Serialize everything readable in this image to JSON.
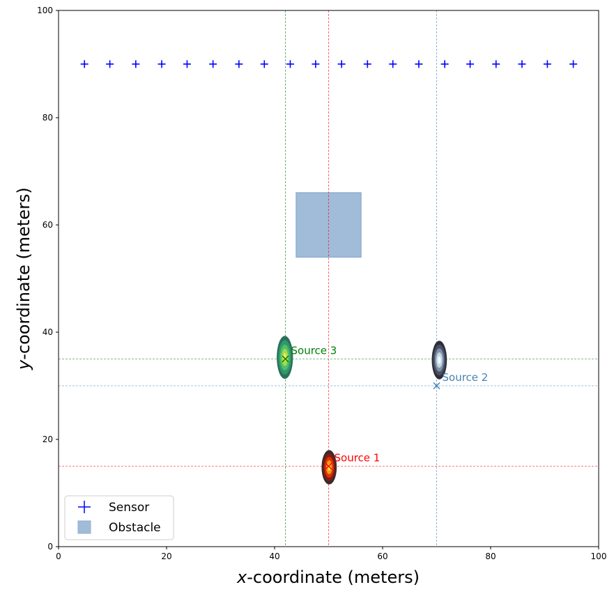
{
  "chart_data": {
    "type": "scatter",
    "title": "",
    "xlabel_var": "x",
    "xlabel_rest": "-coordinate (meters)",
    "ylabel_var": "y",
    "ylabel_rest": "-coordinate (meters)",
    "xlim": [
      0,
      100
    ],
    "ylim": [
      0,
      100
    ],
    "xticks": [
      0,
      20,
      40,
      60,
      80,
      100
    ],
    "yticks": [
      0,
      20,
      40,
      60,
      80,
      100
    ],
    "grid": false,
    "legend_position": "lower-left",
    "legend": [
      {
        "name": "sensor",
        "label": "Sensor",
        "marker": "+",
        "color": "#0000ff"
      },
      {
        "name": "obstacle",
        "label": "Obstacle",
        "marker": "square",
        "color": "#a0bcd8"
      }
    ],
    "sensors": {
      "y": 90,
      "x": [
        4.8,
        9.5,
        14.3,
        19.1,
        23.8,
        28.6,
        33.4,
        38.1,
        42.9,
        47.6,
        52.4,
        57.2,
        61.9,
        66.7,
        71.5,
        76.2,
        81.0,
        85.8,
        90.5,
        95.3
      ]
    },
    "obstacle": {
      "x_min": 44,
      "x_max": 56,
      "y_min": 54,
      "y_max": 66,
      "color": "#a0bcd8"
    },
    "sources": [
      {
        "name": "source-1",
        "label": "Source 1",
        "x": 50,
        "y": 15,
        "color": "#ff0000",
        "posterior": {
          "cx": 50.1,
          "cy": 14.8,
          "rx": 1.4,
          "ry": 3.2,
          "colors": [
            "#3a2a2a",
            "#8b1a10",
            "#e03010",
            "#f5a000",
            "#ffe066"
          ]
        }
      },
      {
        "name": "source-2",
        "label": "Source 2",
        "x": 70,
        "y": 30,
        "color": "#4682b4",
        "posterior": {
          "cx": 70.5,
          "cy": 34.8,
          "rx": 1.4,
          "ry": 3.6,
          "colors": [
            "#2e2e3a",
            "#4a5066",
            "#7e92a8",
            "#c4d8e6",
            "#f2f8ff"
          ]
        }
      },
      {
        "name": "source-3",
        "label": "Source 3",
        "x": 42,
        "y": 35,
        "color": "#008000",
        "posterior": {
          "cx": 41.9,
          "cy": 35.3,
          "rx": 1.5,
          "ry": 4.0,
          "colors": [
            "#2b6f5a",
            "#2e9a6a",
            "#4fbf6a",
            "#a6d94f",
            "#f0e85a"
          ]
        }
      }
    ]
  }
}
